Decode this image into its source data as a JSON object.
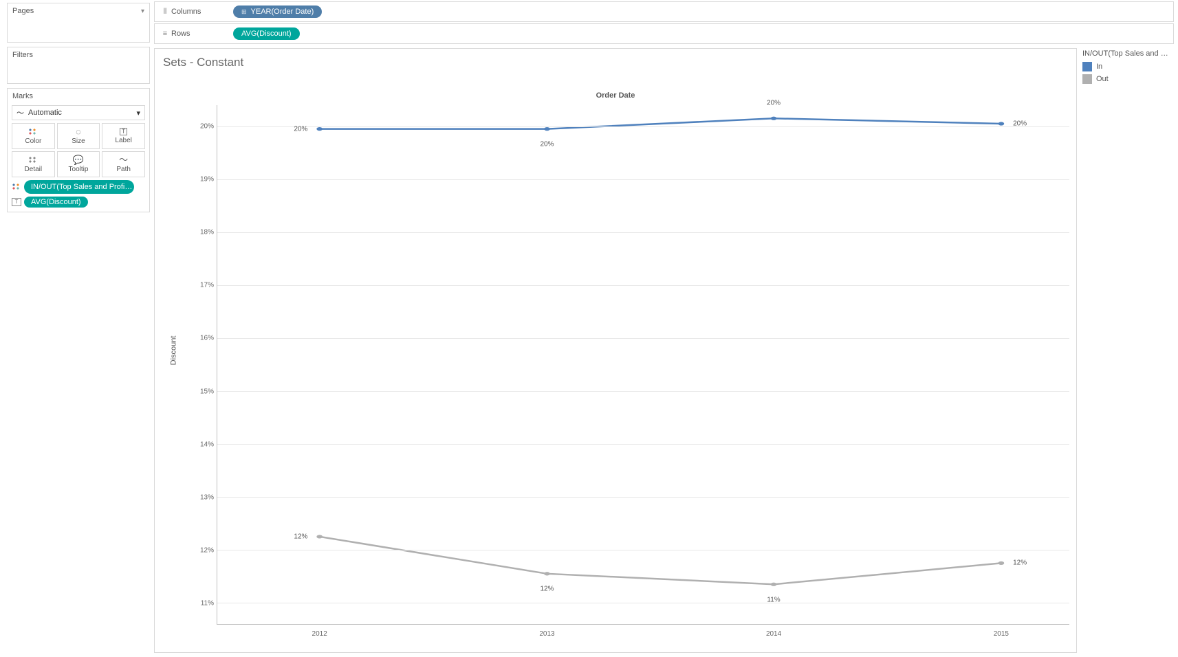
{
  "left": {
    "pages_label": "Pages",
    "filters_label": "Filters",
    "marks_label": "Marks",
    "marks_type": "Automatic",
    "cards": {
      "color": "Color",
      "size": "Size",
      "label": "Label",
      "detail": "Detail",
      "tooltip": "Tooltip",
      "path": "Path"
    },
    "mark_pills": [
      {
        "icon_type": "color",
        "text": "IN/OUT(Top Sales and Profi…",
        "trail": "⦿",
        "color": "teal"
      },
      {
        "icon_type": "label",
        "text": "AVG(Discount)",
        "trail": "",
        "color": "teal"
      }
    ]
  },
  "shelves": {
    "columns_label": "Columns",
    "rows_label": "Rows",
    "columns_pill": {
      "pre": "⊞",
      "text": "YEAR(Order Date)",
      "color": "blue"
    },
    "rows_pill": {
      "pre": "",
      "text": "AVG(Discount)",
      "color": "teal"
    }
  },
  "viz": {
    "title": "Sets - Constant",
    "x_title": "Order Date",
    "y_title": "Discount",
    "chart": {
      "type": "line",
      "x_categories": [
        "2012",
        "2013",
        "2014",
        "2015"
      ],
      "x_positions_pct": [
        12,
        38.7,
        65.3,
        92
      ],
      "y_min": 10.6,
      "y_max": 20.4,
      "y_ticks": [
        11,
        12,
        13,
        14,
        15,
        16,
        17,
        18,
        19,
        20
      ],
      "y_tick_labels": [
        "11%",
        "12%",
        "13%",
        "14%",
        "15%",
        "16%",
        "17%",
        "18%",
        "19%",
        "20%"
      ],
      "grid_color": "#e8e8e8",
      "axis_color": "#bfbfbf",
      "background": "#ffffff",
      "line_width": 2.5,
      "marker_radius": 3,
      "series": [
        {
          "name": "In",
          "color": "#4f81bd",
          "values": [
            19.95,
            19.95,
            20.15,
            20.05
          ],
          "labels": [
            "20%",
            "20%",
            "20%",
            "20%"
          ],
          "label_pos": [
            "left",
            "below",
            "above",
            "right"
          ]
        },
        {
          "name": "Out",
          "color": "#b0b0b0",
          "values": [
            12.25,
            11.55,
            11.35,
            11.75
          ],
          "labels": [
            "12%",
            "12%",
            "11%",
            "12%"
          ],
          "label_pos": [
            "left",
            "below",
            "below",
            "right"
          ]
        }
      ]
    }
  },
  "legend": {
    "title": "IN/OUT(Top Sales and …",
    "items": [
      {
        "label": "In",
        "color": "#4f81bd"
      },
      {
        "label": "Out",
        "color": "#b0b0b0"
      }
    ]
  }
}
